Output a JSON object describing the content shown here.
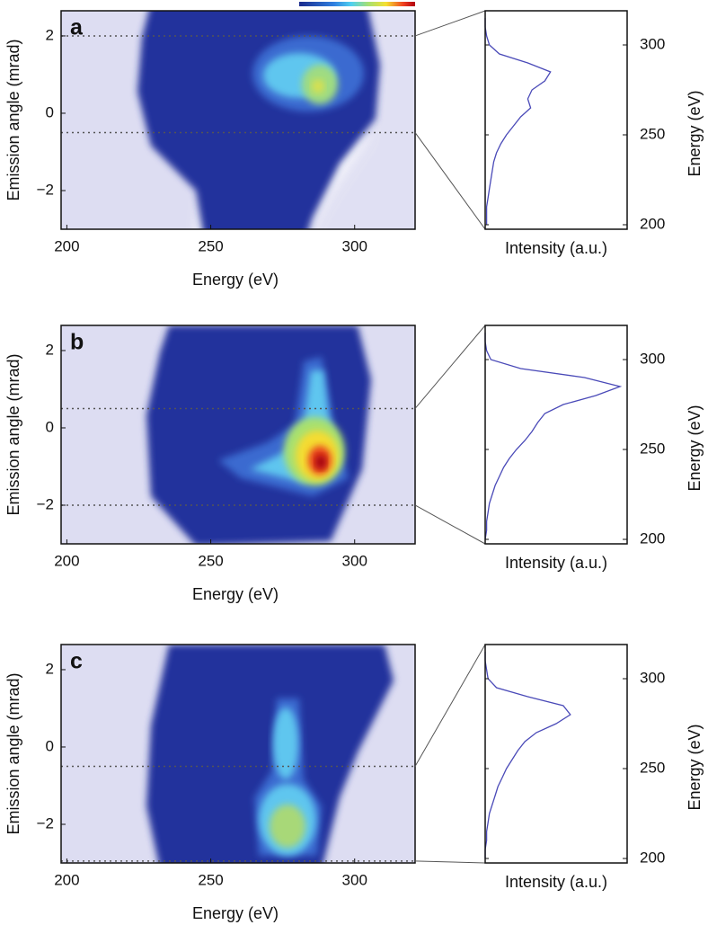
{
  "chart_data": [
    {
      "type": "heatmap",
      "panel": "a",
      "xlabel": "Energy (eV)",
      "ylabel": "Emission angle (mrad)",
      "xlim": [
        198,
        321
      ],
      "ylim": [
        -3,
        2.65
      ],
      "xticks": [
        200,
        250,
        300
      ],
      "yticks": [
        {
          "value": -2,
          "label": "−2"
        },
        0,
        2
      ],
      "guides": [
        2,
        -0.5
      ]
    },
    {
      "type": "line",
      "xlabel": "Intensity (a.u.)",
      "ylabel": "Energy (eV)",
      "xlim": [
        0,
        1
      ],
      "ylim": [
        197.5,
        319
      ],
      "yticks": [
        200,
        250,
        300
      ],
      "color": "#4a4ab8",
      "y": [
        200,
        205,
        210,
        215,
        220,
        225,
        230,
        235,
        240,
        245,
        250,
        255,
        260,
        265,
        270,
        275,
        280,
        285,
        290,
        295,
        300,
        305,
        310,
        315
      ],
      "values": [
        0.01,
        0.01,
        0.01,
        0.02,
        0.03,
        0.04,
        0.05,
        0.06,
        0.08,
        0.11,
        0.15,
        0.2,
        0.25,
        0.32,
        0.3,
        0.33,
        0.42,
        0.46,
        0.3,
        0.1,
        0.03,
        0.01,
        0,
        0
      ]
    },
    {
      "type": "heatmap",
      "panel": "b",
      "xlabel": "Energy (eV)",
      "ylabel": "Emission angle (mrad)",
      "xlim": [
        198,
        321
      ],
      "ylim": [
        -3,
        2.65
      ],
      "xticks": [
        200,
        250,
        300
      ],
      "yticks": [
        {
          "value": -2,
          "label": "−2"
        },
        0,
        2
      ],
      "guides": [
        0.5,
        -2
      ]
    },
    {
      "type": "line",
      "xlabel": "Intensity (a.u.)",
      "ylabel": "Energy (eV)",
      "xlim": [
        0,
        1
      ],
      "ylim": [
        197.5,
        319
      ],
      "yticks": [
        200,
        250,
        300
      ],
      "color": "#4a4ab8",
      "y": [
        200,
        205,
        210,
        215,
        220,
        225,
        230,
        235,
        240,
        245,
        250,
        255,
        260,
        265,
        270,
        275,
        280,
        285,
        290,
        295,
        300,
        305,
        310,
        315
      ],
      "values": [
        0,
        0.01,
        0.01,
        0.02,
        0.03,
        0.05,
        0.07,
        0.1,
        0.13,
        0.17,
        0.22,
        0.28,
        0.33,
        0.37,
        0.42,
        0.55,
        0.78,
        0.95,
        0.7,
        0.25,
        0.04,
        0.01,
        0,
        0
      ]
    },
    {
      "type": "heatmap",
      "panel": "c",
      "xlabel": "Energy (eV)",
      "ylabel": "Emission angle (mrad)",
      "xlim": [
        198,
        321
      ],
      "ylim": [
        -3,
        2.65
      ],
      "xticks": [
        200,
        250,
        300
      ],
      "yticks": [
        {
          "value": -2,
          "label": "−2"
        },
        0,
        2
      ],
      "guides": [
        -0.5,
        -2.95
      ]
    },
    {
      "type": "line",
      "xlabel": "Intensity (a.u.)",
      "ylabel": "Energy (eV)",
      "xlim": [
        0,
        1
      ],
      "ylim": [
        197.5,
        319
      ],
      "yticks": [
        200,
        250,
        300
      ],
      "color": "#4a4ab8",
      "y": [
        200,
        205,
        210,
        215,
        220,
        225,
        230,
        235,
        240,
        245,
        250,
        255,
        260,
        265,
        270,
        275,
        280,
        285,
        290,
        295,
        300,
        305,
        310,
        315
      ],
      "values": [
        0,
        0,
        0.01,
        0.01,
        0.02,
        0.03,
        0.05,
        0.07,
        0.09,
        0.12,
        0.15,
        0.19,
        0.23,
        0.28,
        0.36,
        0.5,
        0.6,
        0.55,
        0.3,
        0.08,
        0.02,
        0.01,
        0,
        0
      ]
    }
  ]
}
